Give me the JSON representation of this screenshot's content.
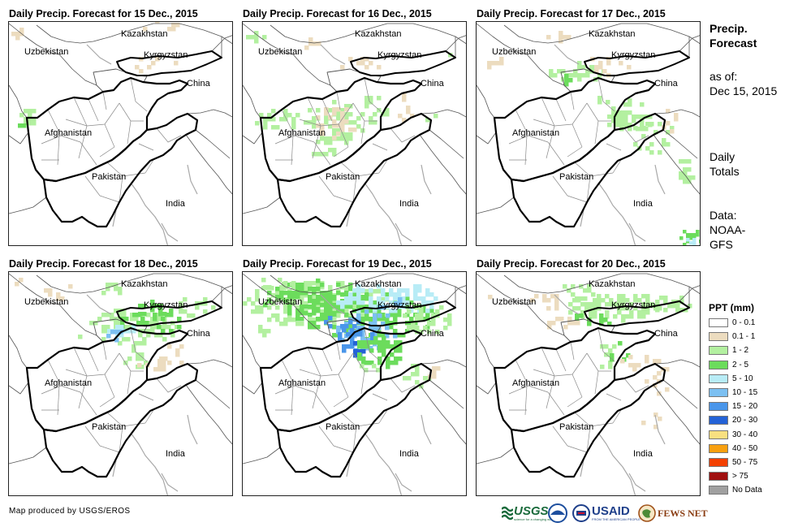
{
  "panels": [
    {
      "title": "Daily Precip. Forecast for 15 Dec., 2015",
      "id": "d15"
    },
    {
      "title": "Daily Precip. Forecast for 16 Dec., 2015",
      "id": "d16"
    },
    {
      "title": "Daily Precip. Forecast for 17 Dec., 2015",
      "id": "d17"
    },
    {
      "title": "Daily Precip. Forecast for 18 Dec., 2015",
      "id": "d18"
    },
    {
      "title": "Daily Precip. Forecast for 19 Dec., 2015",
      "id": "d19"
    },
    {
      "title": "Daily Precip. Forecast for 20 Dec., 2015",
      "id": "d20"
    }
  ],
  "map_labels": {
    "kazakhstan": "Kazakhstan",
    "uzbekistan": "Uzbekistan",
    "kyrgyzstan": "Kyrgyzstan",
    "china": "China",
    "afghanistan": "Afghanistan",
    "pakistan": "Pakistan",
    "india": "India"
  },
  "side": {
    "title_line1": "Precip.",
    "title_line2": "Forecast",
    "asof_line1": "as of:",
    "asof_line2": "Dec 15, 2015",
    "daily_line1": "Daily",
    "daily_line2": "Totals",
    "data_line1": "Data:",
    "data_line2": "NOAA-",
    "data_line3": "GFS"
  },
  "legend": {
    "title": "PPT (mm)",
    "items": [
      {
        "label": "0 - 0.1",
        "color": "#ffffff"
      },
      {
        "label": "0.1 - 1",
        "color": "#ecdcbf"
      },
      {
        "label": "1 - 2",
        "color": "#b3f0a0"
      },
      {
        "label": "2 - 5",
        "color": "#6cdc5c"
      },
      {
        "label": "5 - 10",
        "color": "#b8ecf6"
      },
      {
        "label": "10 - 15",
        "color": "#7cc0f2"
      },
      {
        "label": "15 - 20",
        "color": "#4a96ea"
      },
      {
        "label": "20 - 30",
        "color": "#2462d6"
      },
      {
        "label": "30 - 40",
        "color": "#f8e080"
      },
      {
        "label": "40 - 50",
        "color": "#f8a010"
      },
      {
        "label": "50 - 75",
        "color": "#f44000"
      },
      {
        "label": "> 75",
        "color": "#a01010"
      },
      {
        "label": "No Data",
        "color": "#a0a0a0"
      }
    ]
  },
  "footer": {
    "produced_by": "Map produced by USGS/EROS",
    "logo_usgs": "USGS",
    "logo_usgs_tagline": "science for a changing world",
    "logo_usaid": "USAID",
    "logo_usaid_tagline": "FROM THE AMERICAN PEOPLE",
    "logo_fewsnet": "FEWS NET"
  }
}
